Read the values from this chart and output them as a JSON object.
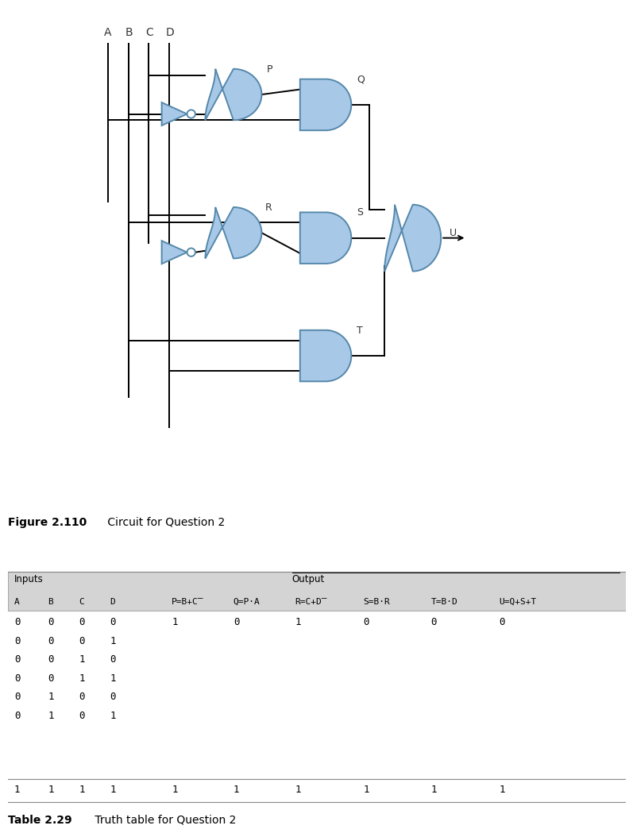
{
  "figure_caption_bold": "Figure 2.110",
  "figure_caption_rest": " Circuit for Question 2",
  "table_caption_bold": "Table 2.29",
  "table_caption_rest": " Truth table for Question 2",
  "bg_color": "#ffffff",
  "gate_fill": "#a8c8e8",
  "gate_edge": "#5588aa",
  "wire_color": "#000000",
  "header_bg": "#d4d4d4",
  "first_row": [
    "0",
    "0",
    "0",
    "0",
    "1",
    "0",
    "1",
    "0",
    "0",
    "0"
  ],
  "partial_rows": [
    [
      "0",
      "0",
      "0",
      "1"
    ],
    [
      "0",
      "0",
      "1",
      "0"
    ],
    [
      "0",
      "0",
      "1",
      "1"
    ],
    [
      "0",
      "1",
      "0",
      "0"
    ],
    [
      "0",
      "1",
      "0",
      "1"
    ]
  ],
  "last_row": [
    "1",
    "1",
    "1",
    "1",
    "1",
    "1",
    "1",
    "1",
    "1",
    "1"
  ]
}
